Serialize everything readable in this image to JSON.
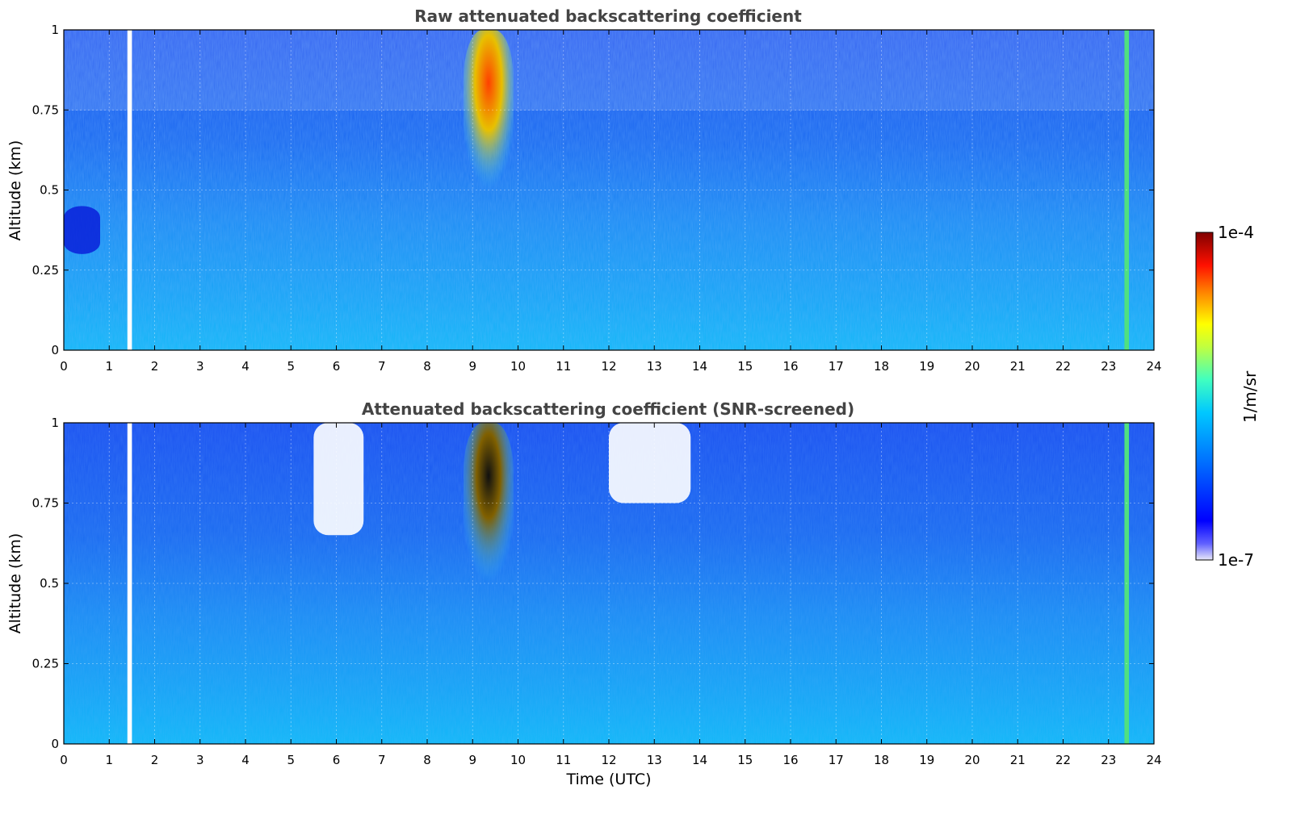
{
  "chart_data": [
    {
      "type": "heatmap",
      "title": "Raw attenuated backscattering coefficient",
      "ylabel": "Altitude (km)",
      "xlabel": "",
      "xlim": [
        0,
        24
      ],
      "ylim": [
        0,
        1
      ],
      "xticks": [
        "0",
        "1",
        "2",
        "3",
        "4",
        "5",
        "6",
        "7",
        "8",
        "9",
        "10",
        "11",
        "12",
        "13",
        "14",
        "15",
        "16",
        "17",
        "18",
        "19",
        "20",
        "21",
        "22",
        "23",
        "24"
      ],
      "yticks": [
        "0",
        "0.25",
        "0.5",
        "0.75",
        "1"
      ],
      "grid": true,
      "screened": false,
      "features": [
        {
          "label": "data gap",
          "x": [
            1.4,
            1.5
          ]
        },
        {
          "label": "aerosol layer",
          "x": [
            0,
            0.8
          ],
          "y": [
            0.3,
            0.45
          ]
        },
        {
          "label": "strong backscatter plume",
          "x": [
            8.8,
            9.9
          ],
          "y": [
            0.45,
            1.0
          ]
        },
        {
          "label": "high-signal streak",
          "x": [
            23.35,
            23.45
          ]
        }
      ]
    },
    {
      "type": "heatmap",
      "title": "Attenuated backscattering coefficient (SNR-screened)",
      "ylabel": "Altitude (km)",
      "xlabel": "Time (UTC)",
      "xlim": [
        0,
        24
      ],
      "ylim": [
        0,
        1
      ],
      "xticks": [
        "0",
        "1",
        "2",
        "3",
        "4",
        "5",
        "6",
        "7",
        "8",
        "9",
        "10",
        "11",
        "12",
        "13",
        "14",
        "15",
        "16",
        "17",
        "18",
        "19",
        "20",
        "21",
        "22",
        "23",
        "24"
      ],
      "yticks": [
        "0",
        "0.25",
        "0.5",
        "0.75",
        "1"
      ],
      "grid": true,
      "screened": true,
      "features": [
        {
          "label": "data gap",
          "x": [
            1.4,
            1.5
          ]
        },
        {
          "label": "screened-out region",
          "x": [
            5.5,
            6.6
          ],
          "y": [
            0.65,
            1.0
          ]
        },
        {
          "label": "screened-out region",
          "x": [
            12.0,
            13.8
          ],
          "y": [
            0.75,
            1.0
          ]
        },
        {
          "label": "strong backscatter plume",
          "x": [
            8.8,
            9.9
          ],
          "y": [
            0.45,
            1.0
          ]
        },
        {
          "label": "high-signal streak",
          "x": [
            23.35,
            23.45
          ]
        }
      ]
    }
  ],
  "colorbar": {
    "label": "1/m/sr",
    "max_label": "1e-4",
    "min_label": "1e-7",
    "scale": "log",
    "colormap": "jet",
    "colors": [
      "#e8e8f8",
      "#0000ff",
      "#00a0ff",
      "#00ffff",
      "#ffff00",
      "#ff0000",
      "#800000"
    ]
  }
}
